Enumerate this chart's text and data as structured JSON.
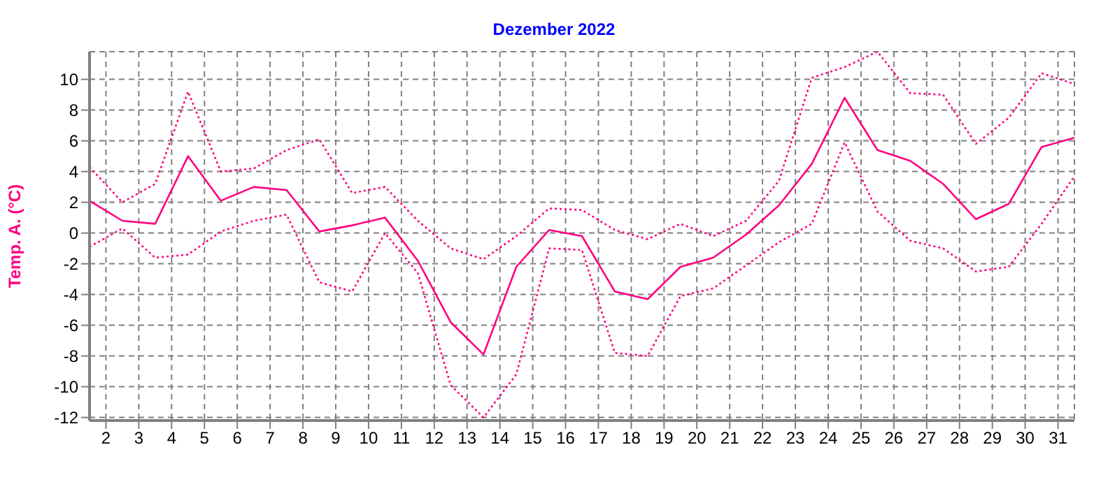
{
  "chart_data": {
    "type": "line",
    "title": "Dezember 2022",
    "ylabel": "Temp. A. (°C)",
    "x": [
      1.5,
      2.5,
      3.5,
      4.5,
      5.5,
      6.5,
      7.5,
      8.5,
      9.5,
      10.5,
      11.5,
      12.5,
      13.5,
      14.5,
      15.5,
      16.5,
      17.5,
      18.5,
      19.5,
      20.5,
      21.5,
      22.5,
      23.5,
      24.5,
      25.5,
      26.5,
      27.5,
      28.5,
      29.5,
      30.5,
      31.5
    ],
    "series": [
      {
        "color": "#ff0080",
        "line_style": "dotted",
        "values": [
          4.3,
          2.0,
          3.2,
          9.2,
          4.0,
          4.2,
          5.4,
          6.1,
          2.6,
          3.0,
          0.8,
          -1.0,
          -1.7,
          -0.2,
          1.6,
          1.5,
          0.2,
          -0.4,
          0.6,
          -0.2,
          0.8,
          3.4,
          10.1,
          10.8,
          11.8,
          9.1,
          9.0,
          5.8,
          7.5,
          10.4,
          9.7
        ]
      },
      {
        "color": "#ff0080",
        "line_style": "solid",
        "values": [
          2.1,
          0.8,
          0.6,
          5.0,
          2.1,
          3.0,
          2.8,
          0.1,
          0.5,
          1.0,
          -1.8,
          -5.8,
          -7.9,
          -2.2,
          0.2,
          -0.2,
          -3.8,
          -4.3,
          -2.2,
          -1.6,
          -0.1,
          1.8,
          4.5,
          8.8,
          5.4,
          4.7,
          3.2,
          0.9,
          1.9,
          5.6,
          6.2
        ]
      },
      {
        "color": "#ff0080",
        "line_style": "dotted",
        "values": [
          -0.9,
          0.3,
          -1.6,
          -1.4,
          0.1,
          0.8,
          1.2,
          -3.2,
          -3.8,
          0.0,
          -2.6,
          -9.9,
          -12.0,
          -9.2,
          -1.0,
          -1.1,
          -7.8,
          -8.0,
          -4.1,
          -3.6,
          -2.1,
          -0.6,
          0.6,
          5.9,
          1.4,
          -0.5,
          -1.0,
          -2.5,
          -2.2,
          0.6,
          3.7
        ]
      }
    ],
    "xlim": [
      1.5,
      31.5
    ],
    "xticks": [
      2,
      3,
      4,
      5,
      6,
      7,
      8,
      9,
      10,
      11,
      12,
      13,
      14,
      15,
      16,
      17,
      18,
      19,
      20,
      21,
      22,
      23,
      24,
      25,
      26,
      27,
      28,
      29,
      30,
      31
    ],
    "ylim": [
      -12.2,
      11.8
    ],
    "yticks": [
      -12,
      -10,
      -8,
      -6,
      -4,
      -2,
      0,
      2,
      4,
      6,
      8,
      10
    ],
    "grid": true,
    "marker": "none"
  }
}
